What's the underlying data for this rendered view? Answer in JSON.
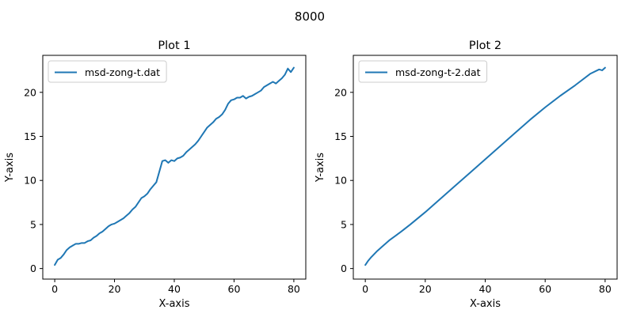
{
  "figure": {
    "suptitle": "8000"
  },
  "chart_data": [
    {
      "type": "line",
      "title": "Plot 1",
      "xlabel": "X-axis",
      "ylabel": "Y-axis",
      "xlim": [
        -4,
        84
      ],
      "ylim": [
        -1.2,
        24.2
      ],
      "xticks": [
        0,
        20,
        40,
        60,
        80
      ],
      "yticks": [
        0,
        5,
        10,
        15,
        20
      ],
      "grid": false,
      "legend_position": "upper-left",
      "series": [
        {
          "name": "msd-zong-t.dat",
          "color": "#1f77b4",
          "x": [
            0,
            1,
            2,
            3,
            4,
            5,
            6,
            7,
            8,
            9,
            10,
            11,
            12,
            13,
            14,
            15,
            16,
            17,
            18,
            19,
            20,
            21,
            22,
            23,
            24,
            25,
            26,
            27,
            28,
            29,
            30,
            31,
            32,
            33,
            34,
            35,
            36,
            37,
            38,
            39,
            40,
            41,
            42,
            43,
            44,
            45,
            46,
            47,
            48,
            49,
            50,
            51,
            52,
            53,
            54,
            55,
            56,
            57,
            58,
            59,
            60,
            61,
            62,
            63,
            64,
            65,
            66,
            67,
            68,
            69,
            70,
            71,
            72,
            73,
            74,
            75,
            76,
            77,
            78,
            79,
            80
          ],
          "y": [
            0.4,
            1.0,
            1.2,
            1.6,
            2.1,
            2.4,
            2.6,
            2.8,
            2.8,
            2.9,
            2.9,
            3.1,
            3.2,
            3.5,
            3.7,
            4.0,
            4.2,
            4.5,
            4.8,
            5.0,
            5.1,
            5.3,
            5.5,
            5.7,
            6.0,
            6.3,
            6.7,
            7.0,
            7.5,
            8.0,
            8.2,
            8.5,
            9.0,
            9.4,
            9.8,
            11.0,
            12.2,
            12.3,
            12.0,
            12.3,
            12.2,
            12.5,
            12.6,
            12.8,
            13.2,
            13.5,
            13.8,
            14.1,
            14.5,
            15.0,
            15.5,
            16.0,
            16.3,
            16.6,
            17.0,
            17.2,
            17.5,
            18.0,
            18.7,
            19.1,
            19.2,
            19.4,
            19.4,
            19.6,
            19.3,
            19.5,
            19.6,
            19.8,
            20.0,
            20.2,
            20.6,
            20.8,
            21.0,
            21.2,
            21.0,
            21.3,
            21.6,
            22.0,
            22.7,
            22.3,
            22.8
          ]
        }
      ]
    },
    {
      "type": "line",
      "title": "Plot 2",
      "xlabel": "X-axis",
      "ylabel": "Y-axis",
      "xlim": [
        -4,
        84
      ],
      "ylim": [
        -1.2,
        24.2
      ],
      "xticks": [
        0,
        20,
        40,
        60,
        80
      ],
      "yticks": [
        0,
        5,
        10,
        15,
        20
      ],
      "grid": false,
      "legend_position": "upper-left",
      "series": [
        {
          "name": "msd-zong-t-2.dat",
          "color": "#1f77b4",
          "x": [
            0,
            1,
            2,
            4,
            6,
            8,
            10,
            12,
            15,
            20,
            25,
            30,
            35,
            40,
            45,
            50,
            55,
            60,
            65,
            70,
            75,
            78,
            79,
            80
          ],
          "y": [
            0.4,
            0.9,
            1.3,
            2.0,
            2.6,
            3.2,
            3.7,
            4.2,
            5.0,
            6.4,
            7.9,
            9.4,
            10.9,
            12.4,
            13.9,
            15.4,
            16.9,
            18.3,
            19.6,
            20.8,
            22.1,
            22.6,
            22.5,
            22.8
          ]
        }
      ]
    }
  ]
}
